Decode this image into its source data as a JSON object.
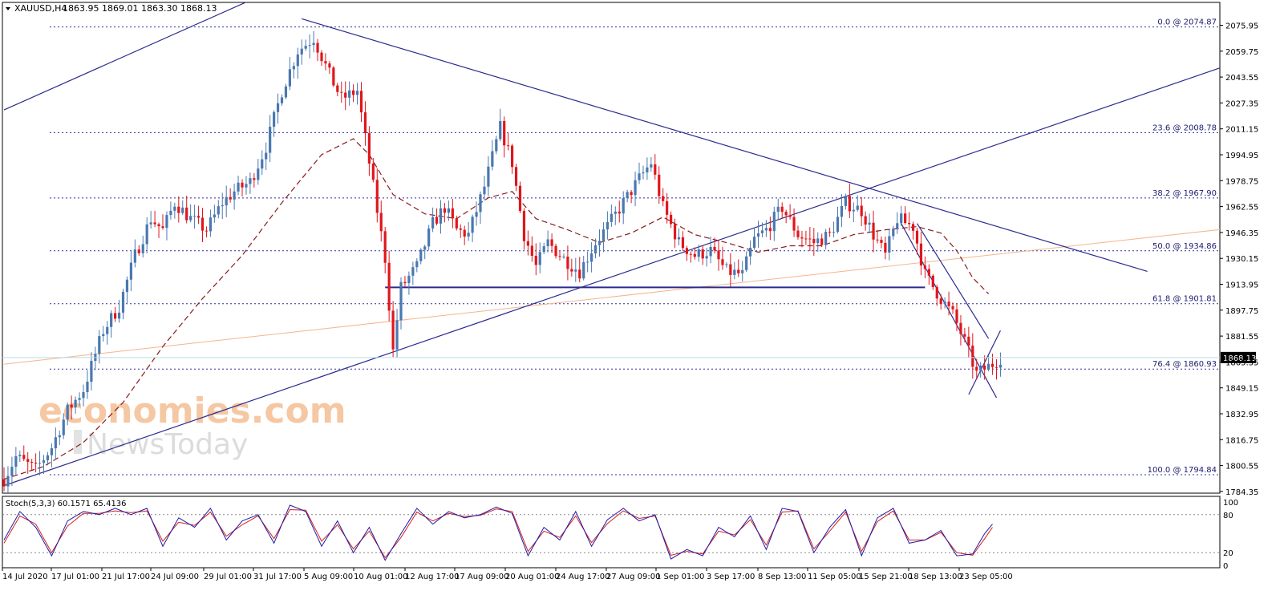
{
  "header": {
    "symbol": "XAUUSD,H4",
    "ohlc": "1863.95 1869.01 1863.30 1868.13"
  },
  "chart_data": {
    "type": "candlestick",
    "symbol": "XAUUSD",
    "timeframe": "H4",
    "ylim": [
      1784.35,
      2091.55
    ],
    "y_ticks": [
      "2075.95",
      "2059.75",
      "2043.55",
      "2027.35",
      "2011.15",
      "1994.95",
      "1978.75",
      "1962.55",
      "1946.35",
      "1930.15",
      "1913.95",
      "1897.75",
      "1881.55",
      "1865.35",
      "1849.15",
      "1832.95",
      "1816.75",
      "1800.55",
      "1784.35"
    ],
    "current_price": "1868.13",
    "x_ticks": [
      "14 Jul 2020",
      "17 Jul 01:00",
      "21 Jul 17:00",
      "24 Jul 09:00",
      "29 Jul 01:00",
      "31 Jul 17:00",
      "5 Aug 09:00",
      "10 Aug 01:00",
      "12 Aug 17:00",
      "17 Aug 09:00",
      "20 Aug 01:00",
      "24 Aug 17:00",
      "27 Aug 09:00",
      "1 Sep 01:00",
      "3 Sep 17:00",
      "8 Sep 13:00",
      "11 Sep 05:00",
      "15 Sep 21:00",
      "18 Sep 13:00",
      "23 Sep 05:00"
    ],
    "price_path": [
      [
        0,
        1792
      ],
      [
        3,
        1806
      ],
      [
        8,
        1798
      ],
      [
        12,
        1812
      ],
      [
        16,
        1835
      ],
      [
        20,
        1848
      ],
      [
        25,
        1885
      ],
      [
        29,
        1900
      ],
      [
        33,
        1932
      ],
      [
        37,
        1955
      ],
      [
        40,
        1948
      ],
      [
        43,
        1965
      ],
      [
        47,
        1955
      ],
      [
        51,
        1948
      ],
      [
        55,
        1965
      ],
      [
        58,
        1972
      ],
      [
        62,
        1978
      ],
      [
        66,
        2000
      ],
      [
        70,
        2035
      ],
      [
        74,
        2060
      ],
      [
        78,
        2068
      ],
      [
        82,
        2045
      ],
      [
        85,
        2030
      ],
      [
        89,
        2035
      ],
      [
        92,
        1990
      ],
      [
        96,
        1930
      ],
      [
        98,
        1872
      ],
      [
        100,
        1912
      ],
      [
        104,
        1925
      ],
      [
        108,
        1952
      ],
      [
        111,
        1962
      ],
      [
        114,
        1948
      ],
      [
        117,
        1945
      ],
      [
        121,
        1975
      ],
      [
        125,
        2012
      ],
      [
        128,
        1990
      ],
      [
        131,
        1945
      ],
      [
        134,
        1925
      ],
      [
        137,
        1940
      ],
      [
        141,
        1930
      ],
      [
        145,
        1922
      ],
      [
        149,
        1940
      ],
      [
        152,
        1950
      ],
      [
        156,
        1965
      ],
      [
        160,
        1980
      ],
      [
        163,
        1990
      ],
      [
        166,
        1962
      ],
      [
        170,
        1940
      ],
      [
        174,
        1932
      ],
      [
        178,
        1935
      ],
      [
        182,
        1922
      ],
      [
        186,
        1920
      ],
      [
        189,
        1942
      ],
      [
        192,
        1948
      ],
      [
        196,
        1962
      ],
      [
        200,
        1945
      ],
      [
        204,
        1940
      ],
      [
        208,
        1945
      ],
      [
        212,
        1965
      ],
      [
        216,
        1960
      ],
      [
        219,
        1945
      ],
      [
        222,
        1932
      ],
      [
        225,
        1955
      ],
      [
        229,
        1950
      ],
      [
        232,
        1920
      ],
      [
        236,
        1905
      ],
      [
        239,
        1895
      ],
      [
        242,
        1878
      ],
      [
        245,
        1858
      ],
      [
        249,
        1864
      ],
      [
        251,
        1868
      ]
    ],
    "moving_average_path": [
      [
        0,
        1792
      ],
      [
        10,
        1800
      ],
      [
        20,
        1815
      ],
      [
        30,
        1840
      ],
      [
        40,
        1875
      ],
      [
        50,
        1905
      ],
      [
        60,
        1932
      ],
      [
        70,
        1965
      ],
      [
        80,
        1995
      ],
      [
        88,
        2005
      ],
      [
        92,
        1995
      ],
      [
        98,
        1970
      ],
      [
        106,
        1958
      ],
      [
        114,
        1955
      ],
      [
        122,
        1968
      ],
      [
        128,
        1972
      ],
      [
        134,
        1955
      ],
      [
        142,
        1948
      ],
      [
        150,
        1940
      ],
      [
        158,
        1946
      ],
      [
        166,
        1956
      ],
      [
        174,
        1945
      ],
      [
        182,
        1940
      ],
      [
        190,
        1934
      ],
      [
        198,
        1938
      ],
      [
        206,
        1938
      ],
      [
        214,
        1945
      ],
      [
        222,
        1948
      ],
      [
        230,
        1950
      ],
      [
        236,
        1946
      ],
      [
        240,
        1935
      ],
      [
        244,
        1918
      ],
      [
        248,
        1908
      ]
    ],
    "fibonacci": [
      {
        "label": "0.0 @ 2074.87",
        "price": 2074.87
      },
      {
        "label": "23.6 @ 2008.78",
        "price": 2008.78
      },
      {
        "label": "38.2 @ 1967.90",
        "price": 1967.9
      },
      {
        "label": "50.0 @ 1934.86",
        "price": 1934.86
      },
      {
        "label": "61.8 @ 1901.81",
        "price": 1901.81
      },
      {
        "label": "76.4 @ 1860.93",
        "price": 1860.93
      },
      {
        "label": "100.0 @ 1794.84",
        "price": 1794.84
      }
    ],
    "horizontal_support": {
      "price": 1912,
      "from": 96,
      "to": 232
    },
    "trendlines": [
      {
        "name": "upper-channel",
        "from": [
          0,
          2023
        ],
        "to": [
          76,
          2107
        ]
      },
      {
        "name": "rising-support",
        "from": [
          0,
          1788
        ],
        "to": [
          217,
          1976
        ],
        "extend_to": [
          313,
          2055
        ]
      },
      {
        "name": "descending-resistance",
        "from": [
          75,
          2080
        ],
        "to": [
          288,
          1922
        ]
      },
      {
        "name": "down-channel-upper",
        "from": [
          230,
          1952
        ],
        "to": [
          248,
          1880
        ]
      },
      {
        "name": "down-channel-lower",
        "from": [
          226,
          1952
        ],
        "to": [
          250,
          1843
        ]
      },
      {
        "name": "rebound-channel",
        "from": [
          243,
          1845
        ],
        "to": [
          251,
          1885
        ]
      }
    ],
    "orange_trend": {
      "from": [
        0,
        1864
      ],
      "to": [
        313,
        1950
      ]
    },
    "stochastic": {
      "label": "Stoch(5,3,3) 60.1571 65.4136",
      "k": 60.1571,
      "d": 65.4136,
      "levels": [
        80,
        20
      ],
      "ticks": [
        "100",
        "80",
        "20",
        "0"
      ],
      "k_path": [
        [
          0,
          40
        ],
        [
          4,
          85
        ],
        [
          8,
          60
        ],
        [
          12,
          15
        ],
        [
          16,
          70
        ],
        [
          20,
          85
        ],
        [
          24,
          80
        ],
        [
          28,
          90
        ],
        [
          32,
          80
        ],
        [
          36,
          90
        ],
        [
          40,
          30
        ],
        [
          44,
          75
        ],
        [
          48,
          60
        ],
        [
          52,
          90
        ],
        [
          56,
          40
        ],
        [
          60,
          70
        ],
        [
          64,
          80
        ],
        [
          68,
          35
        ],
        [
          72,
          95
        ],
        [
          76,
          85
        ],
        [
          80,
          30
        ],
        [
          84,
          70
        ],
        [
          88,
          20
        ],
        [
          92,
          60
        ],
        [
          96,
          8
        ],
        [
          100,
          50
        ],
        [
          104,
          90
        ],
        [
          108,
          65
        ],
        [
          112,
          85
        ],
        [
          116,
          75
        ],
        [
          120,
          80
        ],
        [
          124,
          92
        ],
        [
          128,
          82
        ],
        [
          132,
          15
        ],
        [
          136,
          60
        ],
        [
          140,
          40
        ],
        [
          144,
          85
        ],
        [
          148,
          30
        ],
        [
          152,
          72
        ],
        [
          156,
          90
        ],
        [
          160,
          70
        ],
        [
          164,
          80
        ],
        [
          168,
          10
        ],
        [
          172,
          25
        ],
        [
          176,
          15
        ],
        [
          180,
          60
        ],
        [
          184,
          45
        ],
        [
          188,
          78
        ],
        [
          192,
          25
        ],
        [
          196,
          90
        ],
        [
          200,
          85
        ],
        [
          204,
          20
        ],
        [
          208,
          60
        ],
        [
          212,
          88
        ],
        [
          216,
          15
        ],
        [
          220,
          75
        ],
        [
          224,
          90
        ],
        [
          228,
          35
        ],
        [
          232,
          40
        ],
        [
          236,
          55
        ],
        [
          240,
          15
        ],
        [
          244,
          18
        ],
        [
          247,
          50
        ],
        [
          249,
          65
        ]
      ],
      "d_path": [
        [
          0,
          35
        ],
        [
          4,
          78
        ],
        [
          8,
          65
        ],
        [
          12,
          20
        ],
        [
          16,
          62
        ],
        [
          20,
          82
        ],
        [
          24,
          82
        ],
        [
          28,
          86
        ],
        [
          32,
          83
        ],
        [
          36,
          86
        ],
        [
          40,
          38
        ],
        [
          44,
          68
        ],
        [
          48,
          63
        ],
        [
          52,
          84
        ],
        [
          56,
          46
        ],
        [
          60,
          64
        ],
        [
          64,
          78
        ],
        [
          68,
          42
        ],
        [
          72,
          88
        ],
        [
          76,
          87
        ],
        [
          80,
          38
        ],
        [
          84,
          64
        ],
        [
          88,
          26
        ],
        [
          92,
          54
        ],
        [
          96,
          12
        ],
        [
          100,
          44
        ],
        [
          104,
          84
        ],
        [
          108,
          70
        ],
        [
          112,
          82
        ],
        [
          116,
          77
        ],
        [
          120,
          79
        ],
        [
          124,
          89
        ],
        [
          128,
          85
        ],
        [
          132,
          22
        ],
        [
          136,
          54
        ],
        [
          140,
          44
        ],
        [
          144,
          78
        ],
        [
          148,
          36
        ],
        [
          152,
          66
        ],
        [
          156,
          86
        ],
        [
          160,
          74
        ],
        [
          164,
          78
        ],
        [
          168,
          16
        ],
        [
          172,
          22
        ],
        [
          176,
          18
        ],
        [
          180,
          54
        ],
        [
          184,
          48
        ],
        [
          188,
          72
        ],
        [
          192,
          32
        ],
        [
          196,
          84
        ],
        [
          200,
          86
        ],
        [
          204,
          26
        ],
        [
          208,
          54
        ],
        [
          212,
          84
        ],
        [
          216,
          22
        ],
        [
          220,
          69
        ],
        [
          224,
          86
        ],
        [
          228,
          40
        ],
        [
          232,
          40
        ],
        [
          236,
          52
        ],
        [
          240,
          20
        ],
        [
          244,
          16
        ],
        [
          247,
          42
        ],
        [
          249,
          60
        ]
      ]
    }
  },
  "watermark": {
    "brand_top": "economies.com",
    "brand_bottom": "NewsToday"
  },
  "colors": {
    "bull": "#4a78b0",
    "bear": "#e0161c",
    "trendline": "#2b2b8f",
    "fib": "#2f2f9a",
    "ma": "#8b1a1a",
    "orange": "#f5b58a",
    "price_line": "#b9dbe8",
    "stoch_k": "#1c1ca8",
    "stoch_d": "#d62020"
  }
}
